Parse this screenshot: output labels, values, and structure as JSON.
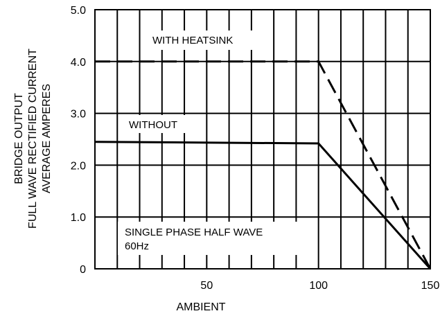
{
  "chart_data": {
    "type": "line",
    "title": "",
    "xlabel": "AMBIENT",
    "ylabel_lines": [
      "BRIDGE OUTPUT",
      "FULL WAVE RECTIFIED CURRENT",
      "AVERAGE AMPERES"
    ],
    "xlim": [
      0,
      150
    ],
    "ylim": [
      0,
      5
    ],
    "x_ticks": [
      50,
      100,
      150
    ],
    "y_ticks": [
      {
        "value": 0,
        "label": "0"
      },
      {
        "value": 1,
        "label": "1.0"
      },
      {
        "value": 2,
        "label": "2.0"
      },
      {
        "value": 3,
        "label": "3.0"
      },
      {
        "value": 4,
        "label": "4.0"
      },
      {
        "value": 5,
        "label": "5.0"
      }
    ],
    "grid": true,
    "series": [
      {
        "name": "WITH HEATSINK",
        "style": "dashed",
        "x": [
          0,
          100,
          150
        ],
        "y": [
          4.0,
          4.0,
          0
        ]
      },
      {
        "name": "WITHOUT",
        "style": "solid",
        "x": [
          0,
          100,
          150
        ],
        "y": [
          2.45,
          2.42,
          0
        ]
      }
    ],
    "annotations": [
      "SINGLE PHASE HALF WAVE",
      "60Hz"
    ]
  }
}
